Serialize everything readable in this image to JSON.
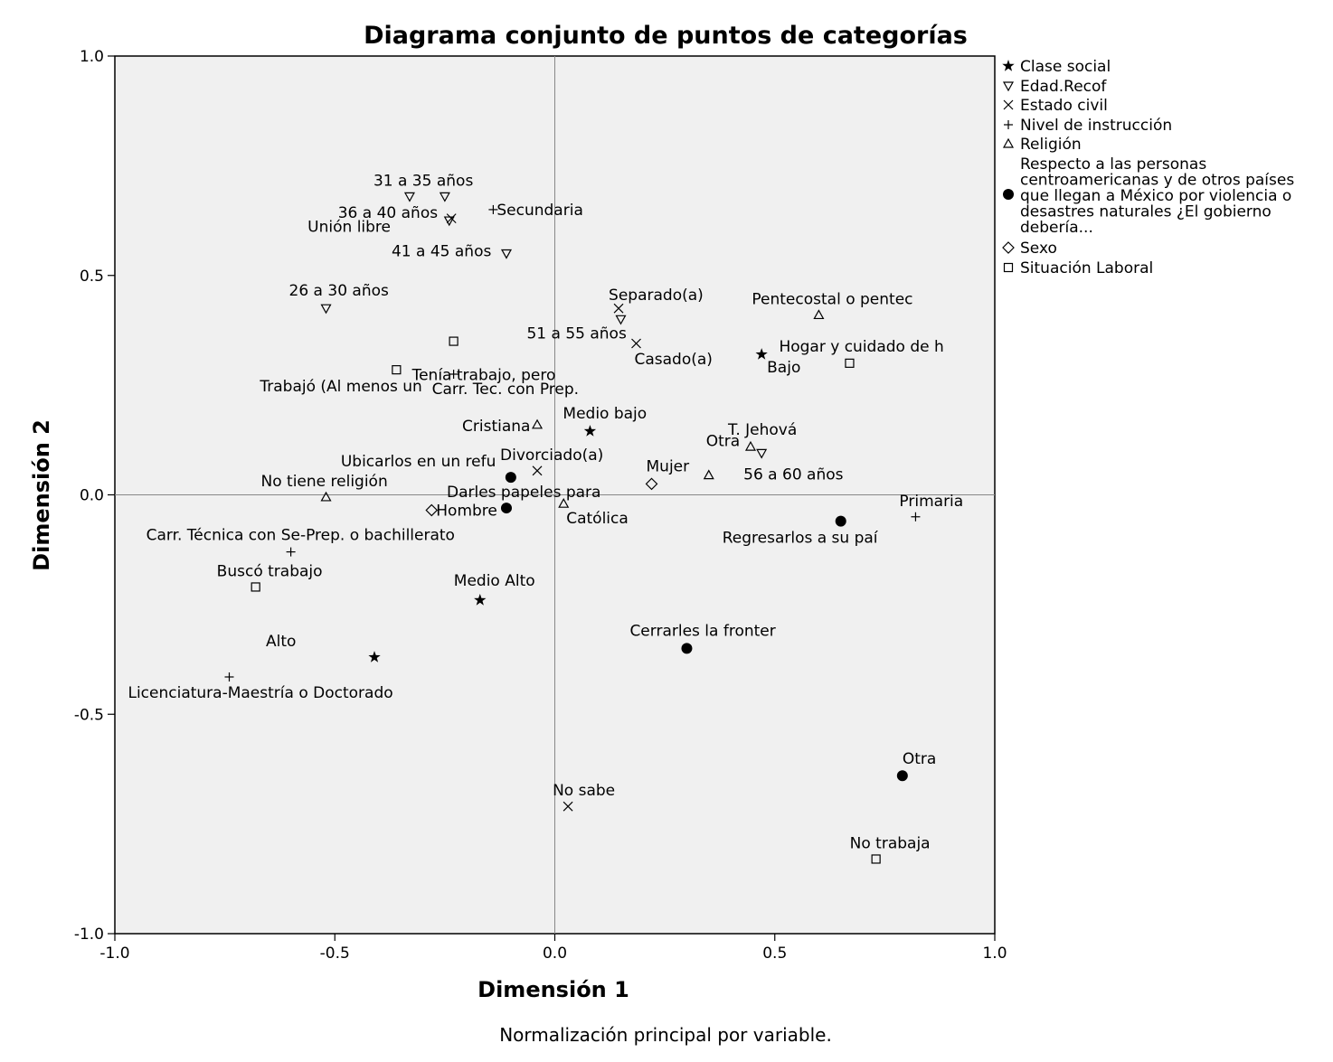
{
  "chart_data": {
    "type": "scatter",
    "title": "Diagrama conjunto de puntos de categorías",
    "xlabel": "Dimensión 1",
    "ylabel": "Dimensión 2",
    "note": "Normalización principal por variable.",
    "xlim": [
      -1.0,
      1.0
    ],
    "ylim": [
      -1.0,
      1.0
    ],
    "xticks": [
      "-1.0",
      "-0.5",
      "0.0",
      "0.5",
      "1.0"
    ],
    "yticks": [
      "1.0",
      "0.5",
      "0.0",
      "-0.5",
      "-1.0"
    ],
    "reference_lines": [
      0,
      0
    ],
    "legend_position": "right",
    "series": [
      {
        "name": "Clase social",
        "marker": "star",
        "points": [
          {
            "x": 0.08,
            "y": 0.145,
            "label": "Medio bajo"
          },
          {
            "x": 0.47,
            "y": 0.32,
            "label": "Bajo"
          },
          {
            "x": -0.17,
            "y": -0.24,
            "label": "Medio Alto"
          },
          {
            "x": -0.41,
            "y": -0.37,
            "label": "Alto"
          }
        ]
      },
      {
        "name": "Edad.Recof",
        "marker": "triangle-down",
        "points": [
          {
            "x": -0.33,
            "y": 0.68,
            "label": "31 a 35 años"
          },
          {
            "x": -0.25,
            "y": 0.68,
            "label": ""
          },
          {
            "x": -0.24,
            "y": 0.625,
            "label": "36 a 40 años"
          },
          {
            "x": -0.11,
            "y": 0.55,
            "label": "41 a 45 años"
          },
          {
            "x": -0.52,
            "y": 0.425,
            "label": "26 a 30 años"
          },
          {
            "x": 0.15,
            "y": 0.4,
            "label": "51 a 55 años"
          },
          {
            "x": 0.47,
            "y": 0.095,
            "label": "56 a 60 años"
          }
        ]
      },
      {
        "name": "Estado civil",
        "marker": "x",
        "points": [
          {
            "x": -0.235,
            "y": 0.63,
            "label": "Unión libre"
          },
          {
            "x": 0.145,
            "y": 0.425,
            "label": "Separado(a)"
          },
          {
            "x": 0.185,
            "y": 0.345,
            "label": "Casado(a)"
          },
          {
            "x": -0.04,
            "y": 0.055,
            "label": "Divorciado(a)"
          },
          {
            "x": 0.03,
            "y": -0.71,
            "label": "No sabe"
          }
        ]
      },
      {
        "name": "Nivel de instrucción",
        "marker": "plus",
        "points": [
          {
            "x": -0.14,
            "y": 0.65,
            "label": "Secundaria"
          },
          {
            "x": -0.23,
            "y": 0.275,
            "label": "Carr. Tec. con Prep."
          },
          {
            "x": 0.82,
            "y": -0.05,
            "label": "Primaria"
          },
          {
            "x": -0.6,
            "y": -0.13,
            "label": "Carr. Técnica con Se-Prep. o bachillerato"
          },
          {
            "x": -0.74,
            "y": -0.415,
            "label": "Licenciatura-Maestría o Doctorado"
          }
        ]
      },
      {
        "name": "Religión",
        "marker": "triangle-up",
        "points": [
          {
            "x": 0.6,
            "y": 0.41,
            "label": "Pentecostal o pentec"
          },
          {
            "x": -0.04,
            "y": 0.16,
            "label": "Cristiana"
          },
          {
            "x": 0.445,
            "y": 0.11,
            "label": "T. Jehová"
          },
          {
            "x": 0.35,
            "y": 0.045,
            "label": "Otra"
          },
          {
            "x": -0.52,
            "y": -0.005,
            "label": "No tiene religión"
          },
          {
            "x": 0.02,
            "y": -0.02,
            "label": "Católica"
          }
        ]
      },
      {
        "name": "Respecto a las personas centroamericanas y de otros países que llegan  a México por violencia o desastres naturales ¿El gobierno debería...",
        "marker": "circle",
        "points": [
          {
            "x": -0.1,
            "y": 0.04,
            "label": "Ubicarlos en un refu"
          },
          {
            "x": -0.11,
            "y": -0.03,
            "label": "Darles papeles para"
          },
          {
            "x": 0.65,
            "y": -0.06,
            "label": "Regresarlos a su paí"
          },
          {
            "x": 0.3,
            "y": -0.35,
            "label": "Cerrarles la fronter"
          },
          {
            "x": 0.79,
            "y": -0.64,
            "label": "Otra"
          }
        ]
      },
      {
        "name": "Sexo",
        "marker": "diamond",
        "points": [
          {
            "x": 0.22,
            "y": 0.025,
            "label": "Mujer"
          },
          {
            "x": -0.28,
            "y": -0.035,
            "label": "Hombre"
          }
        ]
      },
      {
        "name": "Situación Laboral",
        "marker": "square",
        "points": [
          {
            "x": -0.23,
            "y": 0.35,
            "label": "Tenía trabajo, pero"
          },
          {
            "x": -0.36,
            "y": 0.285,
            "label": "Trabajó (Al menos un"
          },
          {
            "x": 0.67,
            "y": 0.3,
            "label": "Hogar y cuidado de h"
          },
          {
            "x": -0.68,
            "y": -0.21,
            "label": "Buscó trabajo"
          },
          {
            "x": 0.73,
            "y": -0.83,
            "label": "No trabaja"
          }
        ]
      }
    ]
  }
}
